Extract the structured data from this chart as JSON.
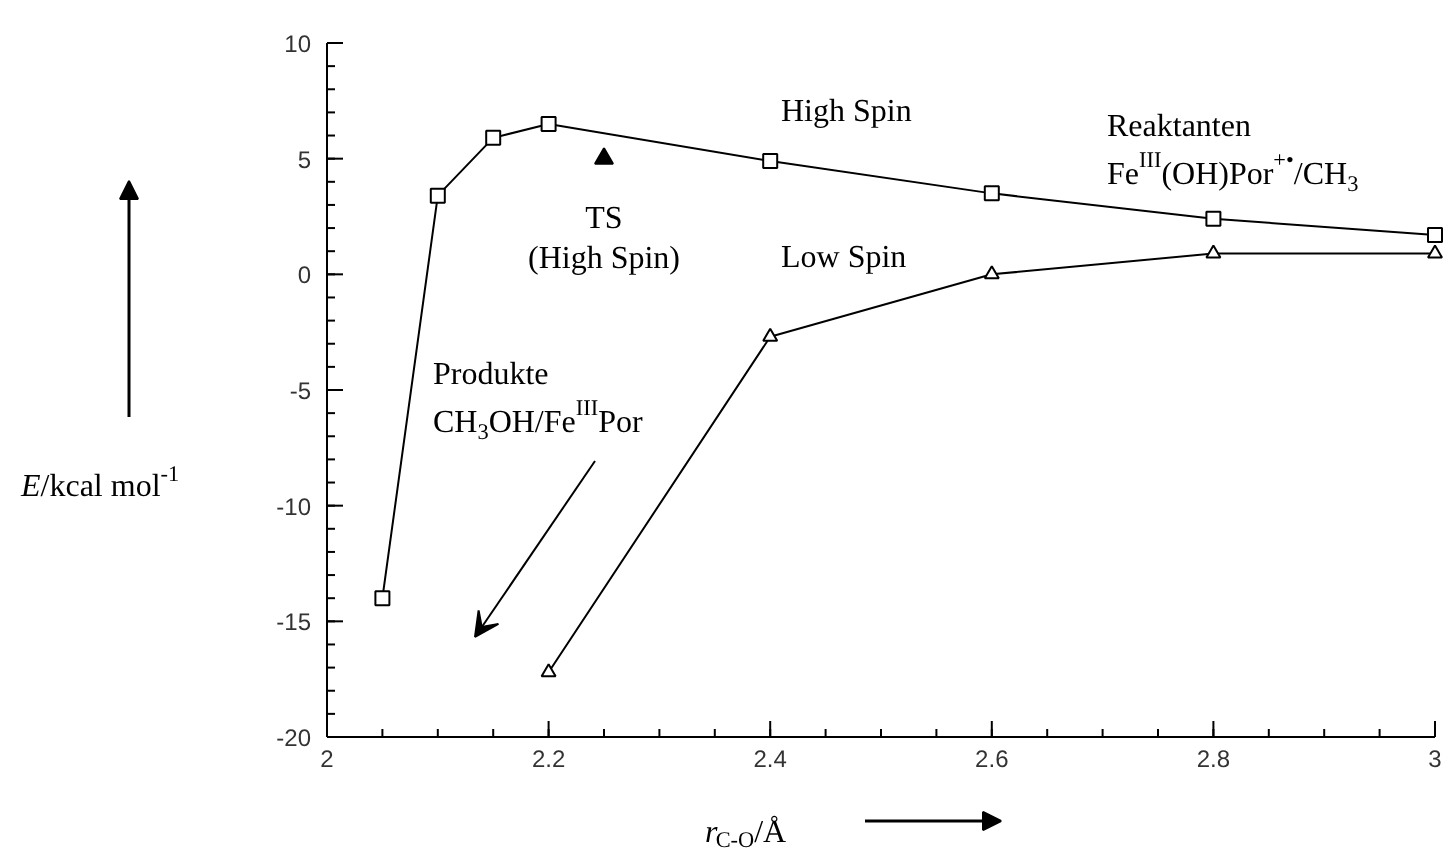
{
  "chart_data": {
    "type": "line",
    "xlabel": "r$_{C-O}$/Å",
    "ylabel": "E/kcal mol$^{-1}$",
    "xlim": [
      2,
      3
    ],
    "ylim": [
      -20,
      10
    ],
    "xticks": [
      2,
      2.2,
      2.4,
      2.6,
      2.8,
      3
    ],
    "yticks": [
      -20,
      -15,
      -10,
      -5,
      0,
      5,
      10
    ],
    "grid": false,
    "line_style": "solid",
    "series": [
      {
        "name": "High Spin",
        "color": "#000000",
        "marker": "square",
        "x": [
          2.05,
          2.1,
          2.15,
          2.2,
          2.4,
          2.6,
          2.8,
          3.0
        ],
        "values": [
          -14.0,
          3.4,
          5.9,
          6.5,
          4.9,
          3.5,
          2.4,
          1.7
        ]
      },
      {
        "name": "Low Spin",
        "color": "#000000",
        "marker": "triangle",
        "x": [
          2.2,
          2.4,
          2.6,
          2.8,
          3.0
        ],
        "values": [
          -17.2,
          -2.7,
          0.0,
          0.9,
          0.9
        ]
      },
      {
        "type": "scatter",
        "color": "#000000",
        "marker": "triangle",
        "x": [
          2.25
        ],
        "values": [
          5.0
        ]
      }
    ],
    "annotations": [
      {
        "text": "TS\n(High Spin)",
        "x": 2.25,
        "y": 5.0
      },
      "Produkte\nCH$_{3}$OH/Fe$^{III}$Por",
      "Reaktanten\nFe$^{III}$(OH)Por$^{+•}$/CH$_{3}$"
    ]
  }
}
